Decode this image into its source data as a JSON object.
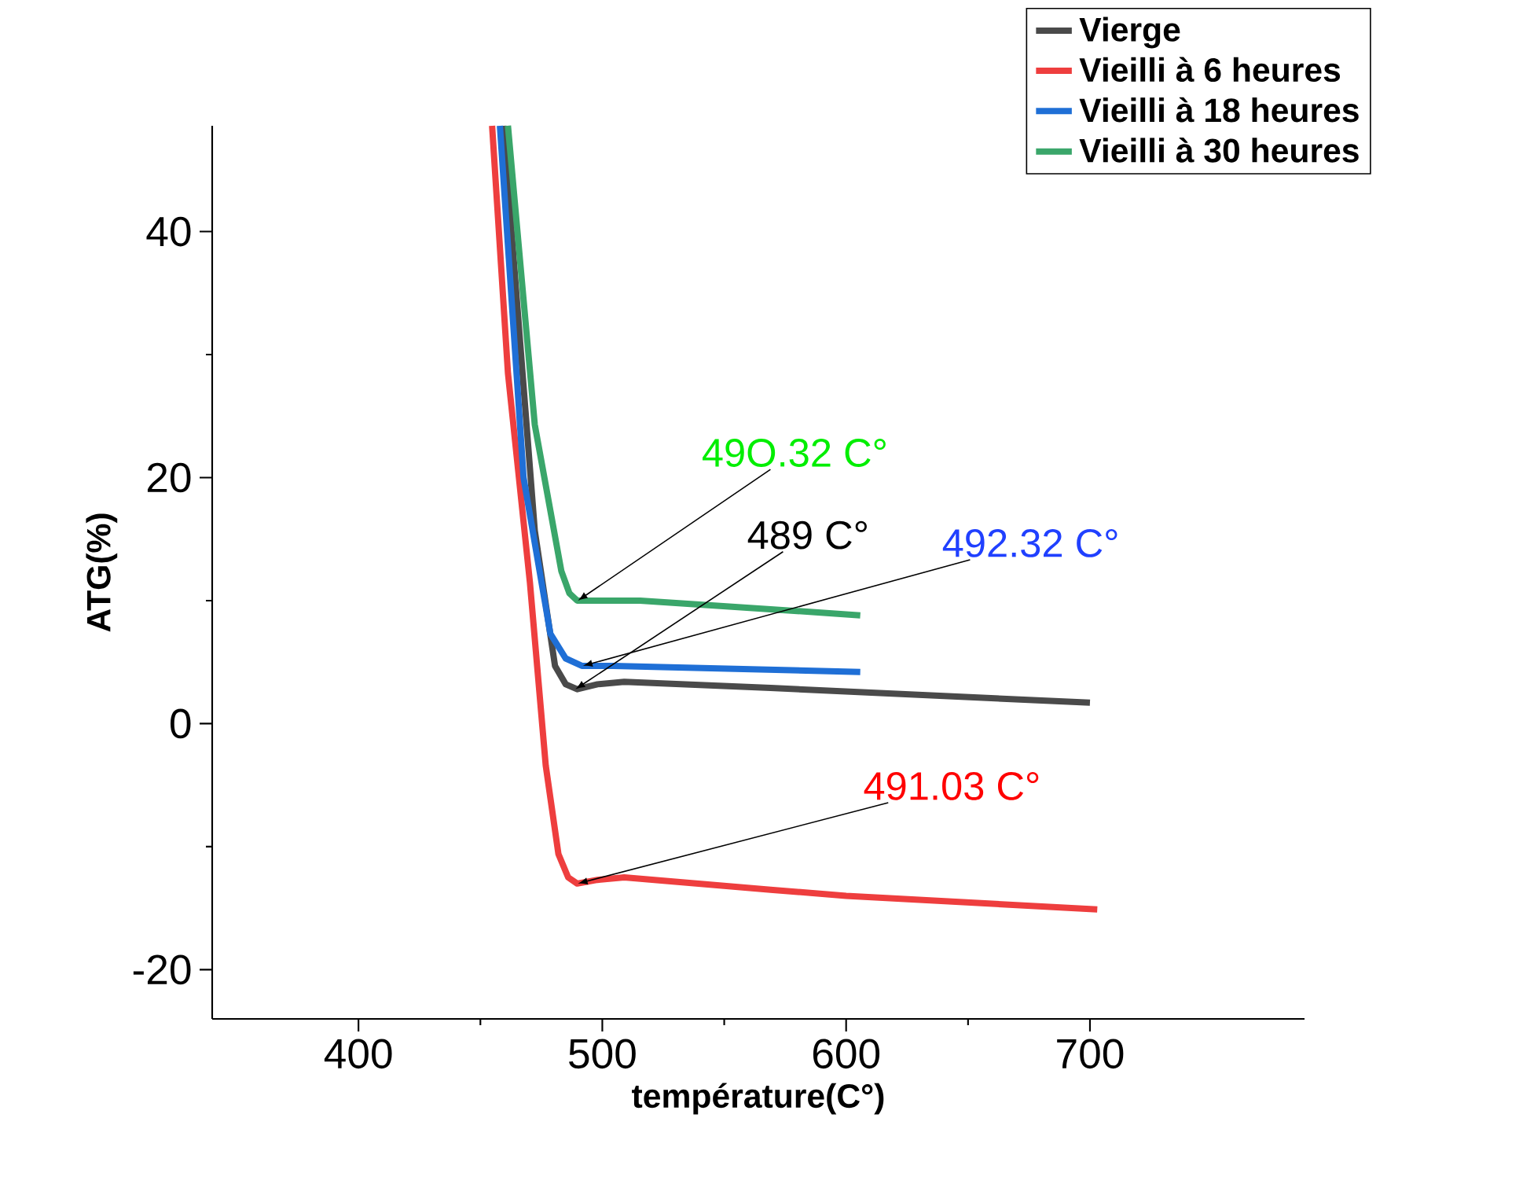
{
  "chart_data": {
    "type": "line",
    "xlabel": "température(C°)",
    "ylabel": "ATG(%)",
    "xlim": [
      340,
      788
    ],
    "ylim": [
      -24,
      48.6
    ],
    "xticks": [
      400,
      500,
      600,
      700
    ],
    "yticks": [
      -20,
      0,
      20,
      40
    ],
    "grid": false,
    "legend": "top right",
    "marker": "none",
    "line_style": "solid",
    "series": [
      {
        "name": "Vierge",
        "color": "#4a4a4a",
        "x": [
          459.4,
          472.3,
          480.6,
          485,
          489.7,
          498,
          509,
          569,
          700
        ],
        "values": [
          48.6,
          15.7,
          4.7,
          3.2,
          2.8,
          3.2,
          3.4,
          2.9,
          1.7
        ]
      },
      {
        "name": "Vieilli à 6 heures",
        "color": "#ee3e3e",
        "x": [
          454.8,
          461.3,
          470.3,
          476.8,
          482,
          486,
          489.7,
          498,
          509,
          569,
          600,
          703
        ],
        "values": [
          48.6,
          28.5,
          11.5,
          -3.4,
          -10.6,
          -12.5,
          -13.0,
          -12.7,
          -12.5,
          -13.5,
          -14.0,
          -15.1
        ]
      },
      {
        "name": "Vieilli à 18 heures",
        "color": "#1f6fd6",
        "x": [
          458,
          467.7,
          478.7,
          485,
          491.6,
          504.5,
          605.8
        ],
        "values": [
          48.6,
          20.0,
          7.3,
          5.3,
          4.7,
          4.7,
          4.2
        ]
      },
      {
        "name": "Vieilli à 30 heures",
        "color": "#3aa66a",
        "x": [
          461.3,
          472.3,
          483.2,
          486.5,
          489.7,
          515.5,
          569,
          605.8
        ],
        "values": [
          48.6,
          24.3,
          12.4,
          10.6,
          10.0,
          10.0,
          9.3,
          8.8
        ]
      }
    ],
    "annotations": [
      {
        "text": "49O.32 C°",
        "x": 490,
        "y": 10.0
      },
      {
        "text": "489 C°",
        "x": 489,
        "y": 2.8
      },
      {
        "text": "492.32 C°",
        "x": 492,
        "y": 4.7
      },
      {
        "text": "491.03 C°",
        "x": 490,
        "y": -13.0
      }
    ]
  }
}
